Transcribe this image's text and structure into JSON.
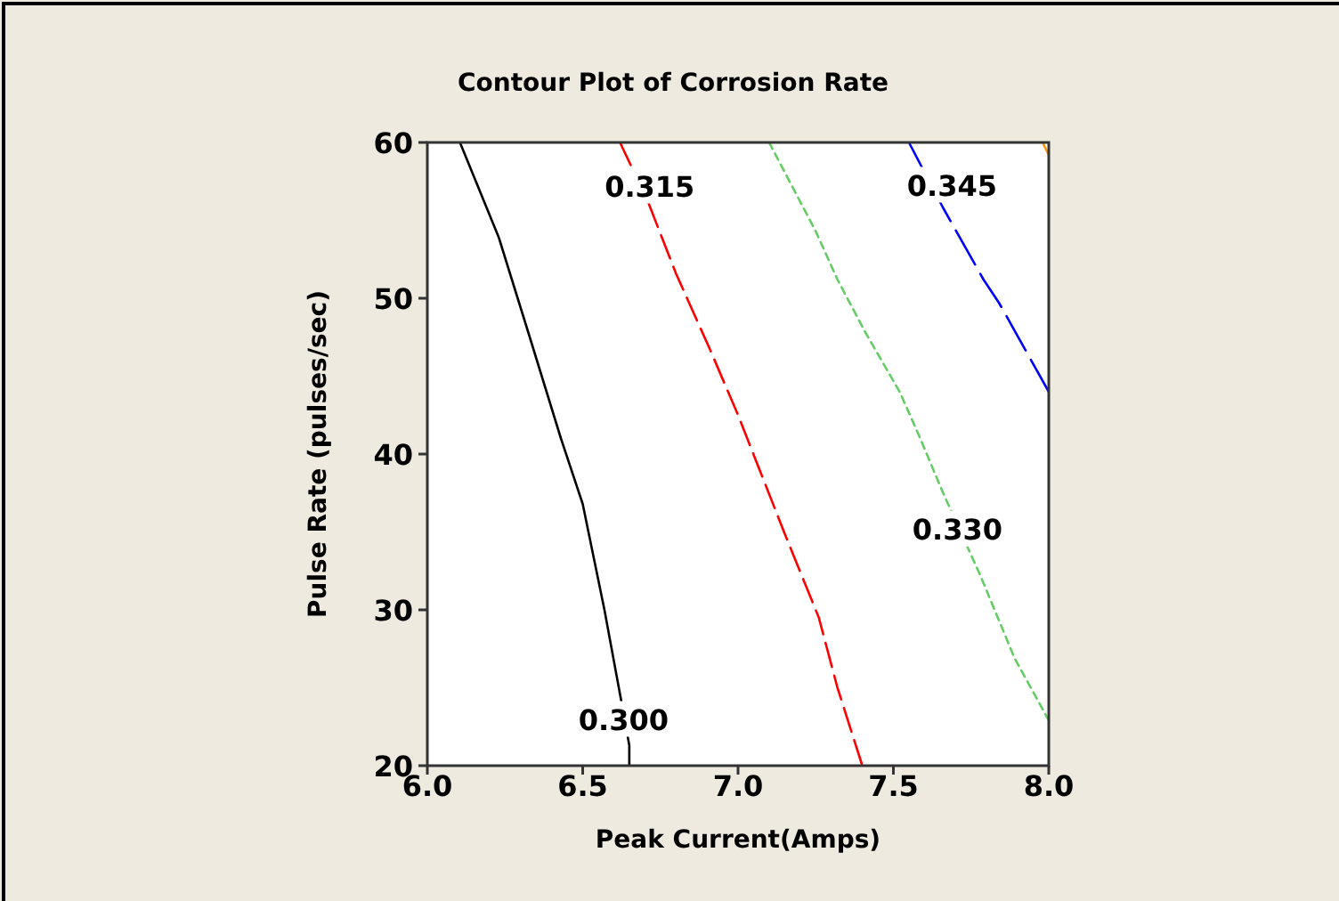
{
  "chart_data": {
    "type": "line",
    "title": "Contour Plot of Corrosion Rate",
    "xlabel": "Peak Current(Amps)",
    "ylabel": "Pulse Rate (pulses/sec)",
    "xlim": [
      6.0,
      8.0
    ],
    "xticks": [
      {
        "value": 6,
        "label": "6.0"
      },
      {
        "value": 6.5,
        "label": "6.5"
      },
      {
        "value": 7,
        "label": "7.0"
      },
      {
        "value": 7.5,
        "label": "7.5"
      },
      {
        "value": 8,
        "label": "8.0"
      }
    ],
    "ylim": [
      20,
      60
    ],
    "yticks": [
      20,
      30,
      40,
      50,
      60
    ],
    "marker": "none",
    "series": [
      {
        "name": "0.300",
        "color": "#000000",
        "line_style": "solid",
        "x": [
          6.105,
          6.23,
          6.325,
          6.43,
          6.5,
          6.57,
          6.62,
          6.65,
          6.65
        ],
        "values": [
          60,
          53.9,
          47.8,
          41.0,
          36.8,
          30.0,
          24.6,
          21.3,
          20
        ]
      },
      {
        "name": "0.315",
        "color": "#ff0000",
        "line_style": "dashed",
        "x": [
          6.62,
          6.71,
          6.8,
          6.91,
          7.0,
          7.15,
          7.26,
          7.32,
          7.4
        ],
        "values": [
          60,
          56.2,
          51.6,
          46.7,
          42.5,
          34.9,
          29.5,
          25.0,
          20
        ]
      },
      {
        "name": "0.330",
        "color": "#66cc66",
        "line_style": "dashed",
        "x": [
          7.1,
          7.25,
          7.32,
          7.41,
          7.52,
          7.58,
          7.66,
          7.78,
          7.89,
          8.0
        ],
        "values": [
          60,
          54.3,
          51.2,
          47.8,
          44.0,
          41.3,
          37.5,
          32.2,
          26.9,
          22.9
        ]
      },
      {
        "name": "0.345",
        "color": "#0000ff",
        "line_style": "dashed",
        "x": [
          7.55,
          7.66,
          7.79,
          7.84,
          8.0
        ],
        "values": [
          60,
          55.8,
          51.2,
          49.7,
          44.0
        ]
      },
      {
        "color": "#ff9900",
        "line_style": "solid",
        "x": [
          7.98,
          8.0
        ],
        "values": [
          60,
          59.2
        ]
      }
    ]
  }
}
